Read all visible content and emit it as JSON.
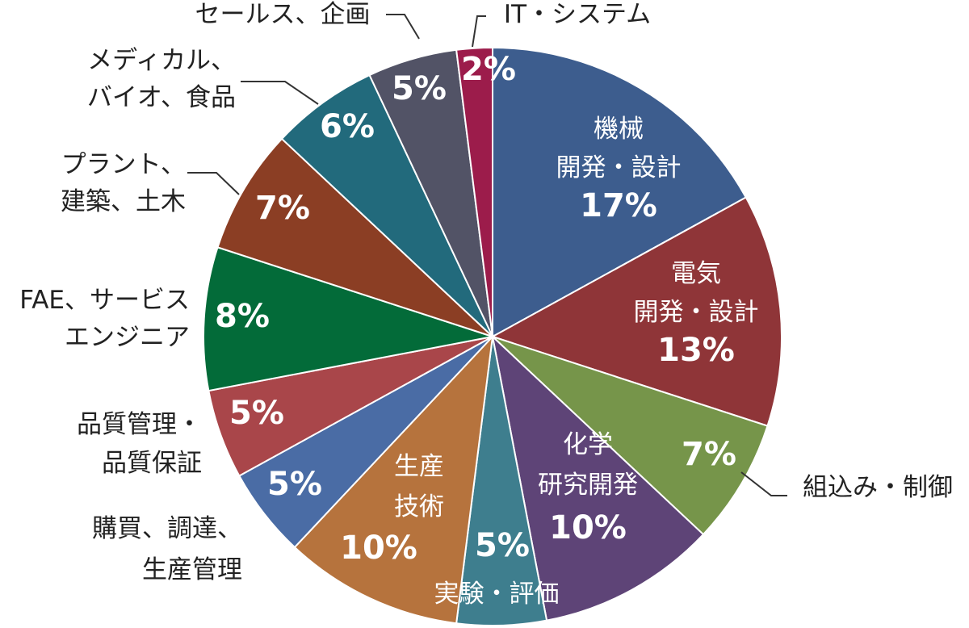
{
  "chart_data": {
    "type": "pie",
    "start_angle_deg": 0,
    "direction": "clockwise",
    "slices": [
      {
        "label_lines": [
          "機械",
          "開発・設計"
        ],
        "value": 17,
        "display": "17%",
        "color": "#3d5d8e",
        "label_pos": "inside"
      },
      {
        "label_lines": [
          "電気",
          "開発・設計"
        ],
        "value": 13,
        "display": "13%",
        "color": "#8f3538",
        "label_pos": "inside"
      },
      {
        "label_lines": [
          "組込み・制御"
        ],
        "value": 7,
        "display": "7%",
        "color": "#76954a",
        "label_pos": "outside"
      },
      {
        "label_lines": [
          "化学",
          "研究開発"
        ],
        "value": 10,
        "display": "10%",
        "color": "#5e4477",
        "label_pos": "inside"
      },
      {
        "label_lines": [
          "実験・評価"
        ],
        "value": 5,
        "display": "5%",
        "color": "#3e7e8e",
        "label_pos": "inside-bottom"
      },
      {
        "label_lines": [
          "生産",
          "技術"
        ],
        "value": 10,
        "display": "10%",
        "color": "#b6733d",
        "label_pos": "inside"
      },
      {
        "label_lines": [
          "購買、調達、",
          "生産管理"
        ],
        "value": 5,
        "display": "5%",
        "color": "#4a6ca5",
        "label_pos": "outside"
      },
      {
        "label_lines": [
          "品質管理・",
          "品質保証"
        ],
        "value": 5,
        "display": "5%",
        "color": "#a9464a",
        "label_pos": "outside"
      },
      {
        "label_lines": [
          "FAE、サービス",
          "エンジニア"
        ],
        "value": 8,
        "display": "8%",
        "color": "#036b39",
        "label_pos": "outside"
      },
      {
        "label_lines": [
          "プラント、",
          "建築、土木"
        ],
        "value": 7,
        "display": "7%",
        "color": "#8b3e24",
        "label_pos": "outside"
      },
      {
        "label_lines": [
          "メディカル、",
          "バイオ、食品"
        ],
        "value": 6,
        "display": "6%",
        "color": "#226a7c",
        "label_pos": "outside"
      },
      {
        "label_lines": [
          "セールス、企画"
        ],
        "value": 5,
        "display": "5%",
        "color": "#525366",
        "label_pos": "outside"
      },
      {
        "label_lines": [
          "IT・システム"
        ],
        "value": 2,
        "display": "2%",
        "color": "#9c1c4b",
        "label_pos": "outside"
      }
    ]
  }
}
